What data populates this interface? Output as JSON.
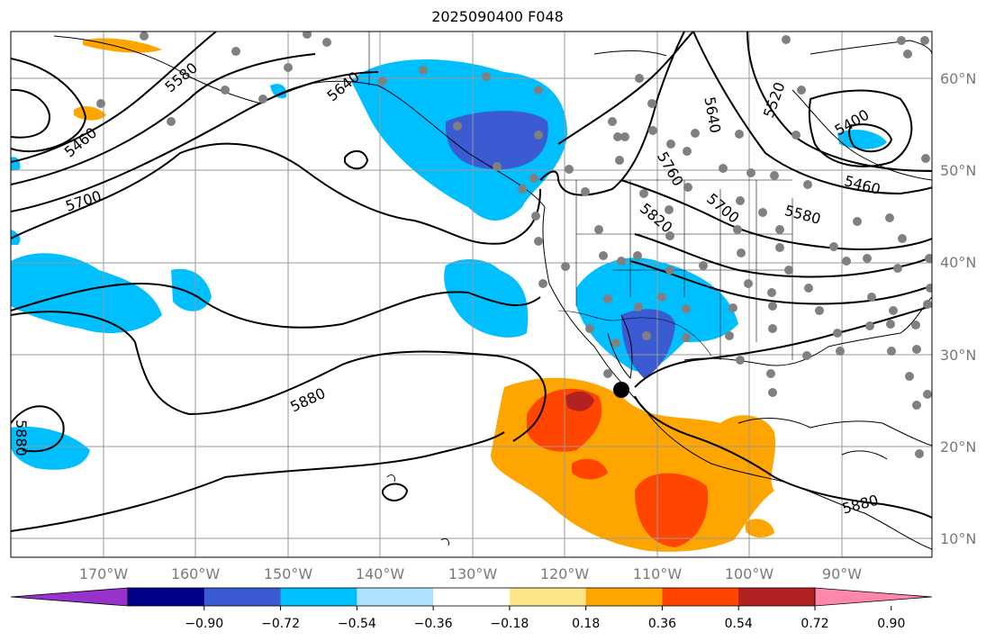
{
  "title": "2025090400 F048",
  "lat_labels": [
    "60°N",
    "50°N",
    "40°N",
    "30°N",
    "20°N",
    "10°N"
  ],
  "lon_labels": [
    "170°W",
    "160°W",
    "150°W",
    "140°W",
    "130°W",
    "120°W",
    "110°W",
    "100°W",
    "90°W"
  ],
  "contour_labels": [
    "5460",
    "5580",
    "5640",
    "5700",
    "5640",
    "5520",
    "5400",
    "5760",
    "5820",
    "5700",
    "5580",
    "5460",
    "5880",
    "5880",
    "5880"
  ],
  "colorbar": {
    "ticks": [
      "−0.90",
      "−0.72",
      "−0.54",
      "−0.36",
      "−0.18",
      "0.18",
      "0.36",
      "0.54",
      "0.72",
      "0.90"
    ],
    "colors": [
      "#9932cc",
      "#00008b",
      "#3a5bd1",
      "#00bfff",
      "#b0e2ff",
      "#ffffff",
      "#ffe58a",
      "#ffa500",
      "#ff4500",
      "#b22222",
      "#ff88aa"
    ]
  }
}
